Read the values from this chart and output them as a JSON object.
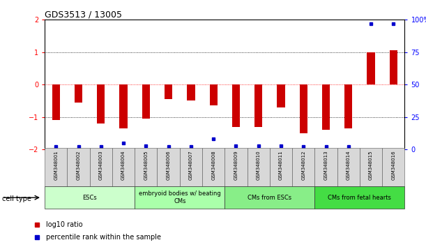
{
  "title": "GDS3513 / 13005",
  "samples": [
    "GSM348001",
    "GSM348002",
    "GSM348003",
    "GSM348004",
    "GSM348005",
    "GSM348006",
    "GSM348007",
    "GSM348008",
    "GSM348009",
    "GSM348010",
    "GSM348011",
    "GSM348012",
    "GSM348013",
    "GSM348014",
    "GSM348015",
    "GSM348016"
  ],
  "log10_ratio": [
    -1.1,
    -0.55,
    -1.2,
    -1.35,
    -1.05,
    -0.45,
    -0.5,
    -0.65,
    -1.3,
    -1.3,
    -0.7,
    -1.5,
    -1.4,
    -1.35,
    1.0,
    1.05
  ],
  "percentile_rank_display": [
    2,
    2,
    2,
    5,
    3,
    2,
    2,
    8,
    3,
    3,
    3,
    2,
    2,
    2,
    97,
    97
  ],
  "ylim": [
    -2,
    2
  ],
  "yticks_left": [
    -2,
    -1,
    0,
    1,
    2
  ],
  "yticks_right": [
    0,
    25,
    50,
    75,
    100
  ],
  "bar_color": "#CC0000",
  "dot_color": "#0000CC",
  "background_color": "#ffffff",
  "cell_type_groups": [
    {
      "label": "ESCs",
      "start": 0,
      "end": 3,
      "color": "#ccffcc"
    },
    {
      "label": "embryoid bodies w/ beating\nCMs",
      "start": 4,
      "end": 7,
      "color": "#aaffaa"
    },
    {
      "label": "CMs from ESCs",
      "start": 8,
      "end": 11,
      "color": "#88ee88"
    },
    {
      "label": "CMs from fetal hearts",
      "start": 12,
      "end": 15,
      "color": "#44dd44"
    }
  ],
  "cell_type_label": "cell type",
  "legend_items": [
    {
      "label": "log10 ratio",
      "color": "#CC0000"
    },
    {
      "label": "percentile rank within the sample",
      "color": "#0000CC"
    }
  ],
  "title_fontsize": 9,
  "tick_fontsize": 7,
  "label_fontsize": 7,
  "bar_width": 0.35
}
